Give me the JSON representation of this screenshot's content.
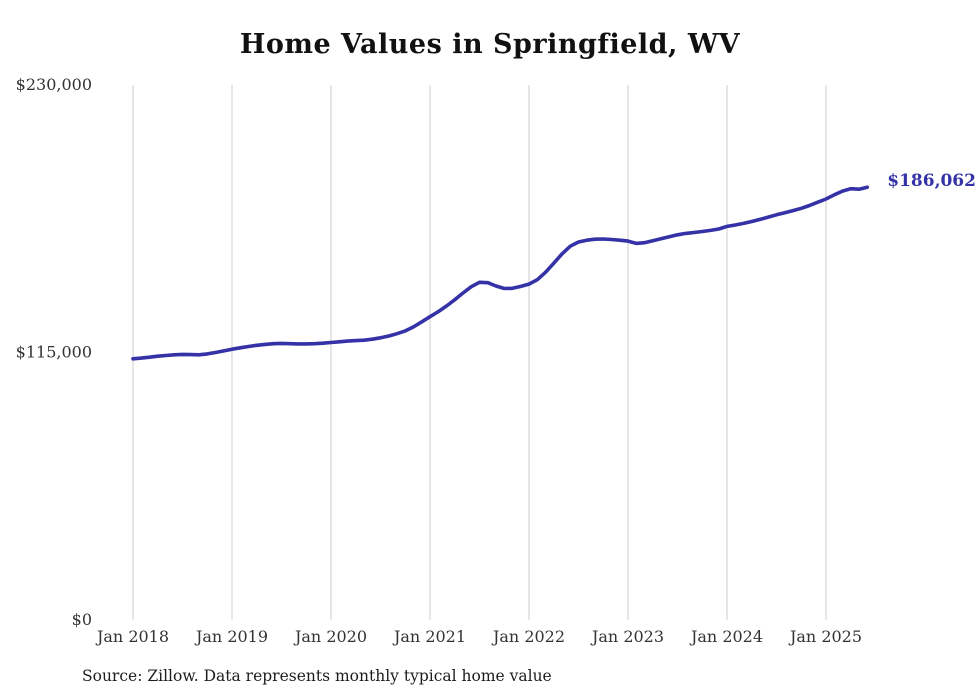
{
  "chart_data": {
    "type": "line",
    "title": "Home Values in Springfield, WV",
    "xlabel": "",
    "ylabel": "",
    "ylim": [
      0,
      230000
    ],
    "grid": "vertical-only",
    "legend": "none",
    "series_name": "Typical home value (monthly)",
    "start_month": "2018-01",
    "end_month": "2025-06",
    "values": [
      112300,
      112600,
      113000,
      113400,
      113700,
      114000,
      114200,
      114100,
      114000,
      114400,
      115000,
      115700,
      116400,
      117000,
      117600,
      118100,
      118500,
      118800,
      118900,
      118800,
      118700,
      118700,
      118800,
      119000,
      119300,
      119600,
      119900,
      120100,
      120300,
      120700,
      121300,
      122100,
      123100,
      124300,
      126000,
      128200,
      130400,
      132600,
      135000,
      137700,
      140600,
      143300,
      145200,
      145000,
      143600,
      142500,
      142600,
      143400,
      144400,
      146300,
      149500,
      153400,
      157400,
      160700,
      162500,
      163300,
      163700,
      163800,
      163600,
      163300,
      162900,
      161900,
      162200,
      163000,
      163900,
      164800,
      165600,
      166200,
      166600,
      167000,
      167500,
      168100,
      169200,
      169800,
      170500,
      171300,
      172200,
      173200,
      174200,
      175100,
      176000,
      177000,
      178200,
      179600,
      181000,
      182800,
      184400,
      185400,
      185200,
      186062
    ],
    "x_ticks": [
      {
        "month": 0,
        "label": "Jan 2018"
      },
      {
        "month": 12,
        "label": "Jan 2019"
      },
      {
        "month": 24,
        "label": "Jan 2020"
      },
      {
        "month": 36,
        "label": "Jan 2021"
      },
      {
        "month": 48,
        "label": "Jan 2022"
      },
      {
        "month": 60,
        "label": "Jan 2023"
      },
      {
        "month": 72,
        "label": "Jan 2024"
      },
      {
        "month": 84,
        "label": "Jan 2025"
      }
    ],
    "y_ticks": [
      {
        "value": 230000,
        "label": "$230,000"
      },
      {
        "value": 115000,
        "label": "$115,000"
      },
      {
        "value": 0,
        "label": "$0"
      }
    ],
    "end_label": "$186,062",
    "colors": {
      "line": "#3432a6",
      "grid": "#cccccc",
      "axis_text": "#333333",
      "title_text": "#111111"
    }
  },
  "footer": {
    "source": "Source: Zillow. Data represents monthly typical home value"
  }
}
